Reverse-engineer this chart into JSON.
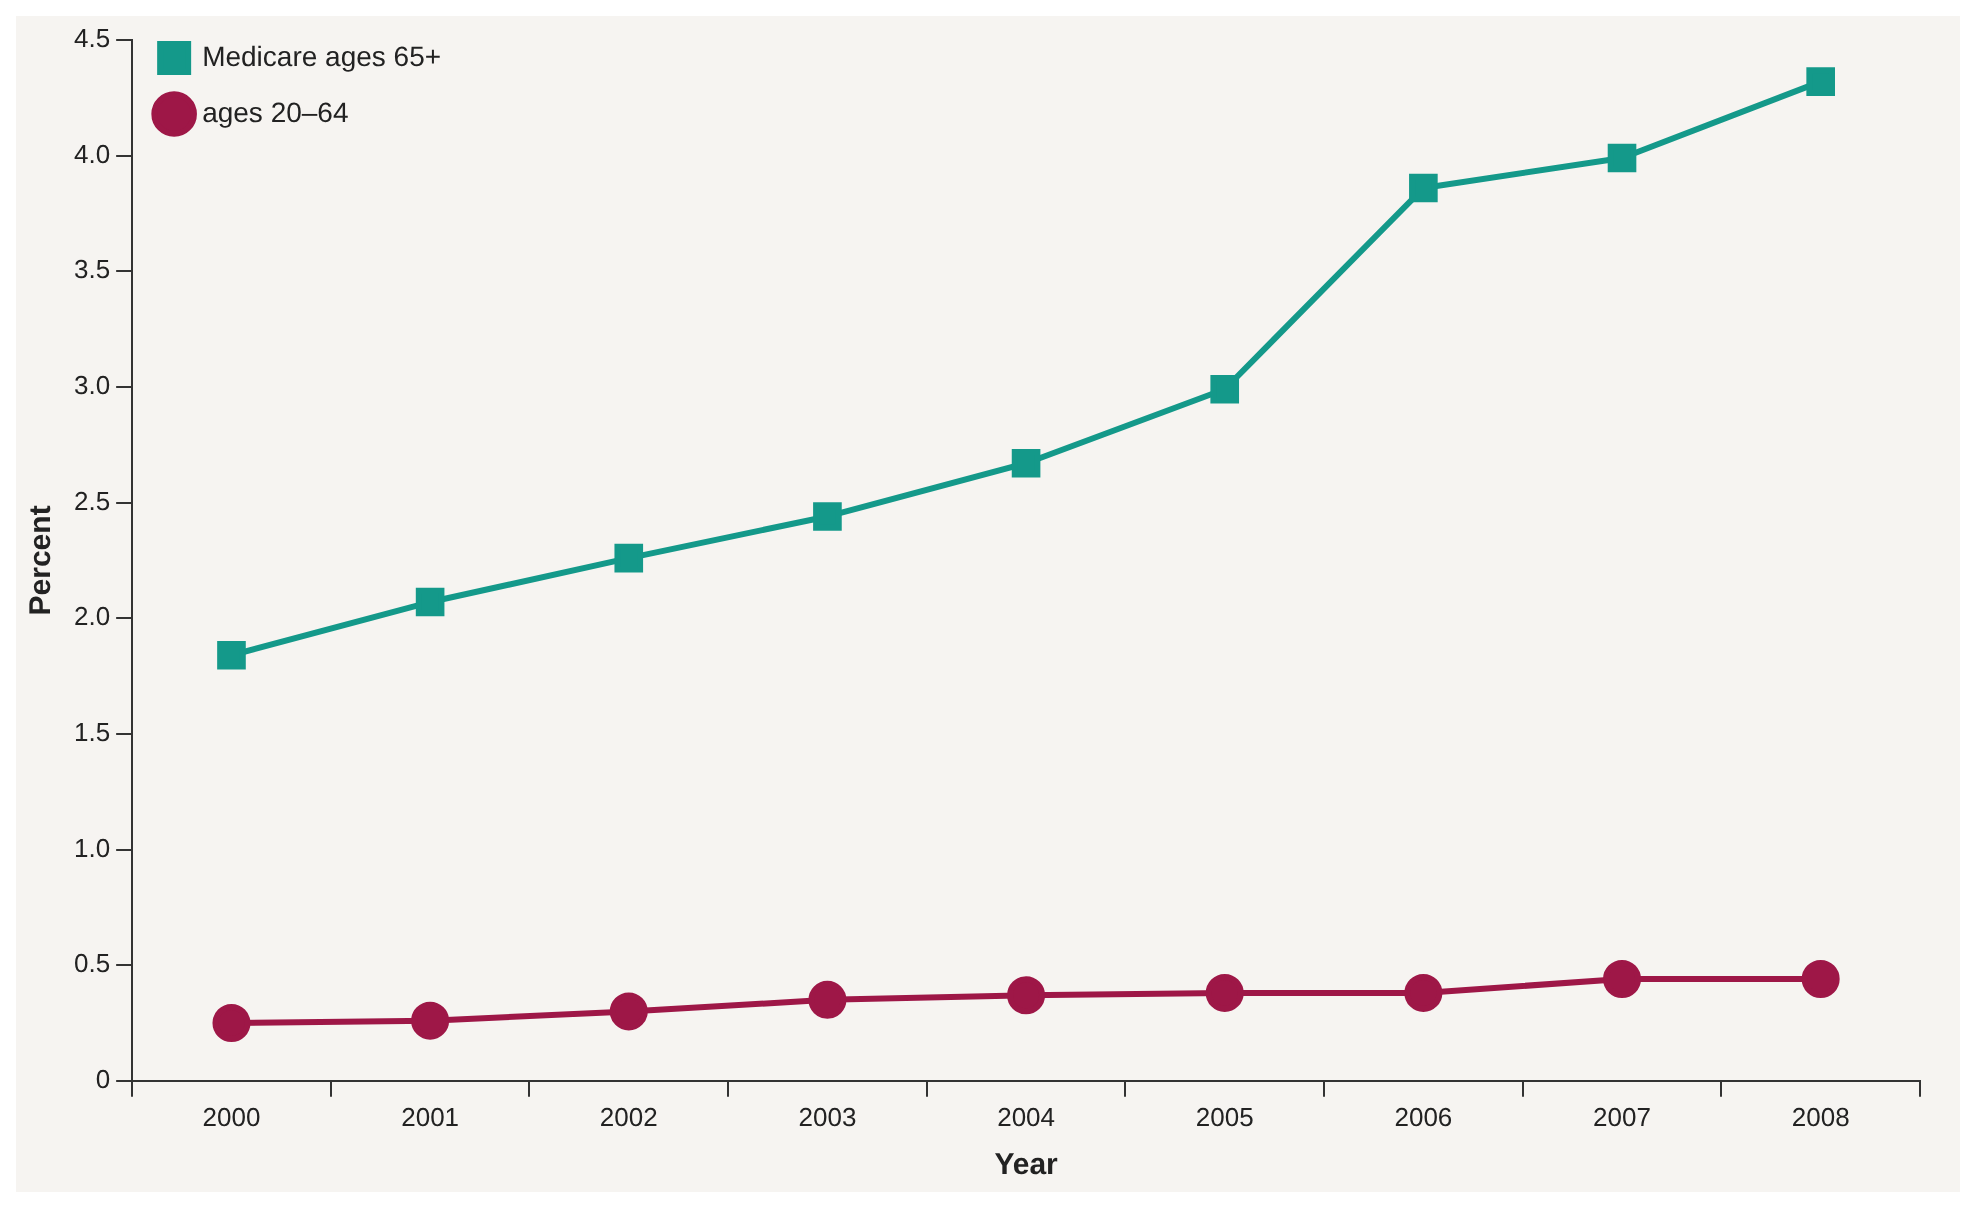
{
  "chart_data": {
    "type": "line",
    "xlabel": "Year",
    "ylabel": "Percent",
    "categories": [
      "2000",
      "2001",
      "2002",
      "2003",
      "2004",
      "2005",
      "2006",
      "2007",
      "2008"
    ],
    "series": [
      {
        "name": "Medicare ages 65+",
        "color": "#14998a",
        "marker": "square",
        "values": [
          1.84,
          2.07,
          2.26,
          2.44,
          2.67,
          2.99,
          3.86,
          3.99,
          4.32
        ]
      },
      {
        "name": "ages 20–64",
        "color": "#9e1747",
        "marker": "circle",
        "values": [
          0.25,
          0.26,
          0.3,
          0.35,
          0.37,
          0.38,
          0.38,
          0.44,
          0.44
        ]
      }
    ],
    "ylim": [
      0,
      4.5
    ],
    "yticks": [
      0,
      {
        "value": 0.5,
        "label": "0.5"
      },
      {
        "value": 1,
        "label": "1.0"
      },
      {
        "value": 1.5,
        "label": "1.5"
      },
      {
        "value": 2,
        "label": "2.0"
      },
      {
        "value": 2.5,
        "label": "2.5"
      },
      {
        "value": 3,
        "label": "3.0"
      },
      {
        "value": 3.5,
        "label": "3.5"
      },
      {
        "value": 4,
        "label": "4.0"
      },
      {
        "value": 4.5,
        "label": "4.5"
      }
    ],
    "grid": false,
    "legend": "top left",
    "line_style": "solid"
  }
}
